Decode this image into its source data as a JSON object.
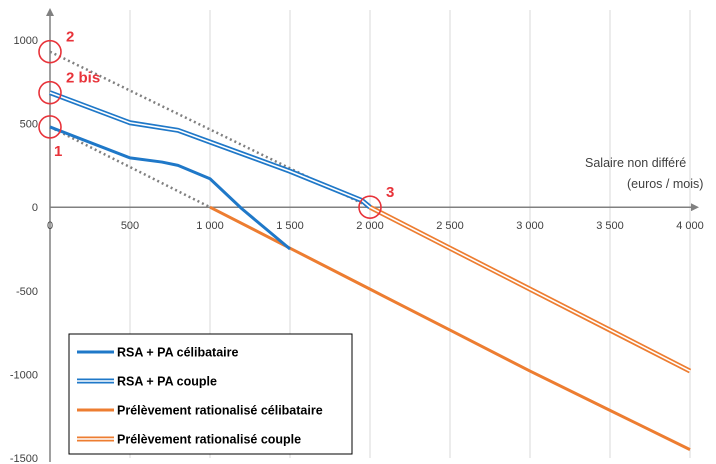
{
  "chart_data": {
    "type": "line",
    "xlabel_line1": "Salaire non différé",
    "xlabel_line2": "(euros / mois)",
    "xlim": [
      0,
      4000
    ],
    "ylim": [
      -1500,
      1000
    ],
    "x_ticks": [
      0,
      500,
      1000,
      1500,
      2000,
      2500,
      3000,
      3500,
      4000
    ],
    "x_tick_labels": [
      "0",
      "500",
      "1 000",
      "1 500",
      "2 000",
      "2 500",
      "3 000",
      "3 500",
      "4 000"
    ],
    "y_ticks": [
      1000,
      500,
      0,
      -500,
      -1000,
      -1500
    ],
    "y_tick_labels": [
      "1000",
      "500",
      "0",
      "-500",
      "-1000",
      "-1500"
    ],
    "grid": "vertical",
    "legend_position": "bottom-left",
    "series": [
      {
        "name": "RSA + PA célibataire",
        "color": "#1f78c8",
        "style": "solid",
        "x": [
          0,
          500,
          700,
          800,
          1000,
          1200,
          1500
        ],
        "y": [
          480,
          295,
          270,
          250,
          170,
          -10,
          -250
        ]
      },
      {
        "name": "RSA + PA couple",
        "color": "#1f78c8",
        "style": "double",
        "x": [
          0,
          500,
          800,
          1000,
          1500,
          1950,
          2000
        ],
        "y": [
          685,
          505,
          460,
          390,
          215,
          40,
          0
        ]
      },
      {
        "name": "Prélèvement rationalisé célibataire",
        "color": "#ed7d31",
        "style": "solid",
        "x": [
          1000,
          1500,
          2000,
          2500,
          3000,
          3500,
          4000
        ],
        "y": [
          0,
          -245,
          -490,
          -735,
          -980,
          -1215,
          -1450
        ]
      },
      {
        "name": "Prélèvement rationalisé couple",
        "color": "#ed7d31",
        "style": "double",
        "x": [
          2000,
          2500,
          3000,
          3500,
          4000
        ],
        "y": [
          0,
          -245,
          -490,
          -735,
          -980
        ]
      }
    ],
    "dotted_guides": [
      {
        "color": "#808080",
        "x": [
          0,
          2000
        ],
        "y": [
          930,
          0
        ]
      },
      {
        "color": "#808080",
        "x": [
          0,
          1000
        ],
        "y": [
          480,
          0
        ]
      }
    ],
    "markers": [
      {
        "label": "2",
        "x": 0,
        "y": 930,
        "label_side": "above-right"
      },
      {
        "label": "2 bis",
        "x": 0,
        "y": 685,
        "label_side": "above-right"
      },
      {
        "label": "1",
        "x": 0,
        "y": 480,
        "label_side": "below-right"
      },
      {
        "label": "3",
        "x": 2000,
        "y": 0,
        "label_side": "above-right"
      }
    ]
  }
}
